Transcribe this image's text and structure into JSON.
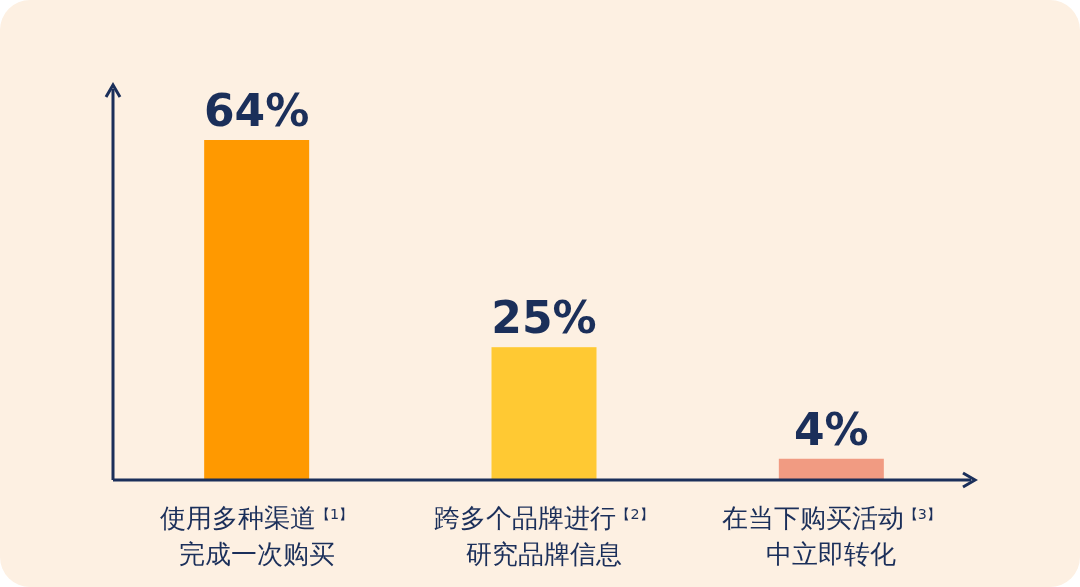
{
  "chart_data": {
    "type": "bar",
    "categories": [
      "使用多种渠道$^{【1】}$完成一次购买",
      "跨多个品牌进行$^{【2】}$研究品牌信息",
      "在当下购买活动$^{【3】}$中立即转化"
    ],
    "values": [
      64,
      25,
      4
    ],
    "value_labels": [
      "64%",
      "25%",
      "4%"
    ],
    "colors": [
      "#ff9900",
      "#ffc933",
      "#f19b82"
    ]
  }
}
